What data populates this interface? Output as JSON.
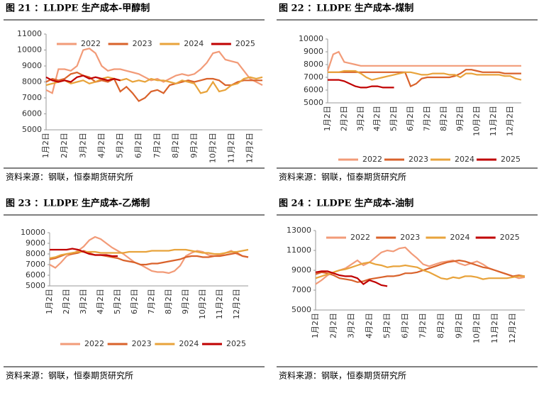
{
  "chart_data": [
    {
      "type": "line",
      "title": "图 21 ：LLDPE 生产成本-甲醇制",
      "source": "资料来源：钢联，恒泰期货研究所",
      "legend": "top",
      "categories": [
        "1月2日",
        null,
        null,
        "2月2日",
        null,
        null,
        "3月2日",
        null,
        null,
        "4月2日",
        null,
        null,
        "5月2日",
        null,
        null,
        "6月2日",
        null,
        null,
        "7月2日",
        null,
        null,
        "8月2日",
        null,
        null,
        "9月2日",
        null,
        null,
        "10月2日",
        null,
        null,
        "11月2日",
        null,
        null,
        "12月2日",
        null,
        null
      ],
      "ylim": [
        5000,
        11000
      ],
      "yticks": [
        5000,
        6000,
        7000,
        8000,
        9000,
        10000,
        11000
      ],
      "series": [
        {
          "name": "2022",
          "color": "#f29b78",
          "values": [
            7500,
            7300,
            8800,
            8800,
            8700,
            9000,
            10000,
            10100,
            9800,
            9000,
            8700,
            8800,
            8800,
            8700,
            8600,
            8500,
            8300,
            8100,
            8200,
            8000,
            8200,
            8400,
            8500,
            8400,
            8500,
            8800,
            9200,
            9800,
            9900,
            9400,
            9300,
            9200,
            8700,
            8200,
            8000,
            7800
          ]
        },
        {
          "name": "2023",
          "color": "#d9622b",
          "values": [
            8000,
            8200,
            8100,
            8200,
            8500,
            8600,
            8400,
            8300,
            8000,
            8100,
            8000,
            8200,
            7400,
            7700,
            7300,
            6800,
            7000,
            7400,
            7500,
            7300,
            7800,
            7900,
            8000,
            8100,
            8000,
            8100,
            8200,
            8200,
            8100,
            7800,
            7800,
            8000,
            8100,
            8100,
            8100,
            8100
          ]
        },
        {
          "name": "2024",
          "color": "#e8a33b",
          "values": [
            7800,
            7900,
            8000,
            8100,
            7900,
            8000,
            8100,
            7900,
            8000,
            8200,
            8300,
            8200,
            8100,
            8200,
            8000,
            8100,
            8000,
            8200,
            8100,
            8100,
            8000,
            7900,
            8100,
            8000,
            7900,
            7300,
            7400,
            8000,
            7400,
            7500,
            7800,
            7900,
            8200,
            8300,
            8200,
            8300
          ]
        },
        {
          "name": "2025",
          "color": "#c00000",
          "values": [
            8300,
            8100,
            8000,
            8100,
            8000,
            8300,
            8400,
            8200,
            8300,
            8200,
            8100,
            8200,
            8100,
            null,
            null,
            null,
            null,
            null,
            null,
            null,
            null,
            null,
            null,
            null,
            null,
            null,
            null,
            null,
            null,
            null,
            null,
            null,
            null,
            null,
            null,
            null
          ]
        }
      ]
    },
    {
      "type": "line",
      "title": "图 22 ：LLDPE 生产成本-煤制",
      "source": "资料来源：钢联，恒泰期货研究所",
      "legend": "bottom",
      "categories": [
        "1月2日",
        null,
        null,
        "2月2日",
        null,
        null,
        "3月2日",
        null,
        null,
        "4月2日",
        null,
        null,
        "5月2日",
        null,
        null,
        "6月2日",
        null,
        null,
        "7月2日",
        null,
        null,
        "8月2日",
        null,
        null,
        "9月2日",
        null,
        null,
        "10月2日",
        null,
        null,
        "11月2日",
        null,
        null,
        "12月2日",
        null,
        null
      ],
      "ylim": [
        5000,
        10000
      ],
      "yticks": [
        5000,
        6000,
        7000,
        8000,
        9000,
        10000
      ],
      "series": [
        {
          "name": "2022",
          "color": "#f29b78",
          "values": [
            7500,
            8800,
            9000,
            8200,
            8100,
            8000,
            7900,
            7900,
            7900,
            7900,
            7900,
            7900,
            7900,
            7900,
            7900,
            7900,
            7900,
            7900,
            7900,
            7900,
            7900,
            7900,
            7900,
            7900,
            7900,
            7900,
            7900,
            7900,
            7900,
            7900,
            7900,
            7900,
            7900,
            7900,
            7900,
            7900
          ]
        },
        {
          "name": "2023",
          "color": "#d9622b",
          "values": [
            7400,
            7400,
            7400,
            7400,
            7400,
            7400,
            7400,
            7400,
            7400,
            7400,
            7400,
            7400,
            7400,
            7400,
            7400,
            6300,
            6500,
            6900,
            7000,
            7000,
            7000,
            7000,
            7000,
            7100,
            7300,
            7600,
            7600,
            7500,
            7400,
            7400,
            7400,
            7400,
            7300,
            7300,
            7300,
            7300
          ]
        },
        {
          "name": "2024",
          "color": "#e8a33b",
          "values": [
            7400,
            7400,
            7400,
            7500,
            7500,
            7500,
            7300,
            7000,
            6800,
            6900,
            7000,
            7100,
            7200,
            7300,
            7400,
            7400,
            7300,
            7200,
            7200,
            7300,
            7300,
            7300,
            7200,
            7200,
            7000,
            7300,
            7300,
            7200,
            7200,
            7200,
            7200,
            7200,
            7100,
            7100,
            6900,
            6800
          ]
        },
        {
          "name": "2025",
          "color": "#c00000",
          "values": [
            6800,
            6800,
            6800,
            6700,
            6500,
            6300,
            6200,
            6200,
            6300,
            6300,
            6200,
            6200,
            6200,
            null,
            null,
            null,
            null,
            null,
            null,
            null,
            null,
            null,
            null,
            null,
            null,
            null,
            null,
            null,
            null,
            null,
            null,
            null,
            null,
            null,
            null,
            null
          ]
        }
      ]
    },
    {
      "type": "line",
      "title": "图 23 ：LLDPE 生产成本-乙烯制",
      "source": "资料来源：钢联，恒泰期货研究所",
      "legend": "bottom",
      "categories": [
        "1月2日",
        null,
        null,
        "2月2日",
        null,
        null,
        "3月2日",
        null,
        null,
        "4月2日",
        null,
        null,
        "5月2日",
        null,
        null,
        "6月2日",
        null,
        null,
        "7月2日",
        null,
        null,
        "8月2日",
        null,
        null,
        "9月2日",
        null,
        null,
        "10月2日",
        null,
        null,
        "11月2日",
        null,
        null,
        "12月2日",
        null,
        null
      ],
      "ylim": [
        5000,
        10000
      ],
      "yticks": [
        5000,
        6000,
        7000,
        8000,
        9000,
        10000
      ],
      "series": [
        {
          "name": "2022",
          "color": "#f29b78",
          "values": [
            7000,
            6700,
            7200,
            7800,
            8000,
            8300,
            8700,
            9300,
            9600,
            9400,
            9000,
            8600,
            8300,
            8000,
            7600,
            7200,
            7000,
            6700,
            6400,
            6300,
            6300,
            6200,
            6400,
            6900,
            7800,
            8100,
            8300,
            8200,
            7900,
            7800,
            7900,
            8100,
            8300,
            8000,
            7800,
            7700
          ]
        },
        {
          "name": "2023",
          "color": "#d9622b",
          "values": [
            7500,
            7600,
            7800,
            8000,
            8000,
            8100,
            8300,
            8100,
            7900,
            7900,
            7800,
            7700,
            7600,
            7400,
            7300,
            7200,
            7000,
            7000,
            7100,
            7100,
            7200,
            7300,
            7400,
            7500,
            7700,
            7800,
            7800,
            7700,
            7700,
            7800,
            7800,
            7900,
            8000,
            8100,
            7800,
            7700
          ]
        },
        {
          "name": "2024",
          "color": "#e8a33b",
          "values": [
            7600,
            7700,
            7900,
            8000,
            8100,
            8200,
            8200,
            8200,
            8200,
            8100,
            8100,
            8100,
            8100,
            8100,
            8200,
            8200,
            8200,
            8200,
            8300,
            8300,
            8300,
            8300,
            8400,
            8400,
            8400,
            8300,
            8200,
            8100,
            8100,
            8000,
            8000,
            8100,
            8200,
            8200,
            8300,
            8400
          ]
        },
        {
          "name": "2025",
          "color": "#c00000",
          "values": [
            8400,
            8400,
            8400,
            8400,
            8500,
            8400,
            8200,
            8000,
            7900,
            7900,
            7900,
            7800,
            7800,
            null,
            null,
            null,
            null,
            null,
            null,
            null,
            null,
            null,
            null,
            null,
            null,
            null,
            null,
            null,
            null,
            null,
            null,
            null,
            null,
            null,
            null,
            null
          ]
        }
      ]
    },
    {
      "type": "line",
      "title": "图 24 ：LLDPE 生产成本-油制",
      "source": "资料来源：钢联，恒泰期货研究所",
      "legend": "top",
      "categories": [
        "1月2日",
        null,
        null,
        "2月2日",
        null,
        null,
        "3月2日",
        null,
        null,
        "4月2日",
        null,
        null,
        "5月2日",
        null,
        null,
        "6月2日",
        null,
        null,
        "7月2日",
        null,
        null,
        "8月2日",
        null,
        null,
        "9月2日",
        null,
        null,
        "10月2日",
        null,
        null,
        "11月2日",
        null,
        null,
        "12月2日",
        null,
        null
      ],
      "ylim": [
        5000,
        13000
      ],
      "yticks": [
        5000,
        7000,
        9000,
        11000,
        13000
      ],
      "series": [
        {
          "name": "2022",
          "color": "#f29b78",
          "values": [
            7600,
            8000,
            8500,
            8800,
            9000,
            9200,
            9600,
            10000,
            9500,
            9800,
            10300,
            10800,
            11000,
            10900,
            11200,
            11300,
            10700,
            10200,
            9600,
            9400,
            9600,
            9800,
            9900,
            10000,
            9700,
            9500,
            9700,
            9900,
            9600,
            9200,
            9000,
            8800,
            8600,
            8400,
            8200,
            8300
          ]
        },
        {
          "name": "2023",
          "color": "#d9622b",
          "values": [
            8600,
            8800,
            8700,
            8500,
            8200,
            8100,
            8000,
            7800,
            7900,
            8100,
            8200,
            8300,
            8400,
            8400,
            8500,
            8700,
            8700,
            8800,
            9000,
            9200,
            9400,
            9600,
            9800,
            9900,
            10000,
            9900,
            9700,
            9500,
            9300,
            9200,
            9000,
            8800,
            8600,
            8400,
            8500,
            8400
          ]
        },
        {
          "name": "2024",
          "color": "#e8a33b",
          "values": [
            8200,
            8400,
            8600,
            8800,
            9000,
            9100,
            9300,
            9500,
            9700,
            9800,
            9600,
            9500,
            9300,
            9400,
            9400,
            9500,
            9400,
            9300,
            9000,
            8800,
            8500,
            8200,
            8100,
            8300,
            8200,
            8400,
            8400,
            8300,
            8100,
            8200,
            8200,
            8200,
            8200,
            8300,
            8400,
            8400
          ]
        },
        {
          "name": "2025",
          "color": "#c00000",
          "values": [
            8800,
            8900,
            8900,
            8700,
            8500,
            8400,
            8400,
            8200,
            7600,
            8000,
            7800,
            7500,
            7400,
            null,
            null,
            null,
            null,
            null,
            null,
            null,
            null,
            null,
            null,
            null,
            null,
            null,
            null,
            null,
            null,
            null,
            null,
            null,
            null,
            null,
            null,
            null
          ]
        }
      ]
    }
  ]
}
